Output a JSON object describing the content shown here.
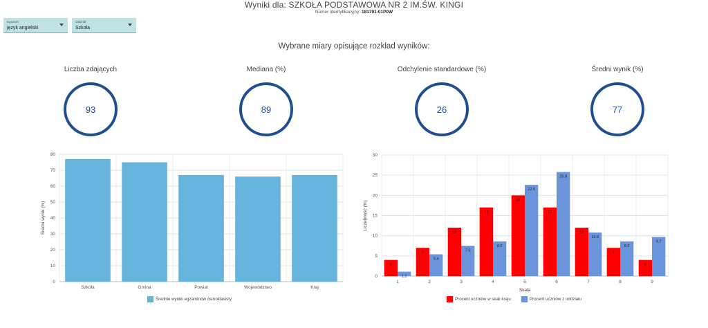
{
  "header": {
    "title": "Wyniki dla: SZKOŁA PODSTAWOWA NR 2 IM.ŚW. KINGI",
    "id_label": "Numer identyfikacyjny:",
    "id_value": "181701-01P0W"
  },
  "filters": {
    "exam": {
      "label": "Egzamin",
      "value": "język angielski"
    },
    "unit": {
      "label": "Oddział",
      "value": "Szkoła"
    }
  },
  "section_title": "Wybrane miary opisujące rozkład wyników:",
  "metrics": [
    {
      "label": "Liczba zdających",
      "value": "93"
    },
    {
      "label": "Mediana (%)",
      "value": "89"
    },
    {
      "label": "Odchylenie standardowe (%)",
      "value": "26"
    },
    {
      "label": "Średni wynik (%)",
      "value": "77"
    }
  ],
  "colors": {
    "ring": "#1f4e91",
    "bar_left": "#66b3dc",
    "country": "#ff0000",
    "class": "#6a95dc"
  },
  "chart_data": [
    {
      "type": "bar",
      "categories": [
        "Szkoła",
        "Gmina",
        "Powiat",
        "Województwo",
        "Kraj"
      ],
      "series": [
        {
          "name": "Średnie wyniki egzaminów ósmoklasisty",
          "values": [
            77,
            75,
            67,
            66,
            67
          ]
        }
      ],
      "ylabel": "Średni wynik (%)",
      "ylim": [
        0,
        80
      ],
      "yticks": [
        0,
        10,
        20,
        30,
        40,
        50,
        60,
        70,
        80
      ],
      "grid": true,
      "legend": "bottom"
    },
    {
      "type": "bar",
      "categories": [
        "1",
        "2",
        "3",
        "4",
        "5",
        "6",
        "7",
        "8",
        "9"
      ],
      "series": [
        {
          "name": "Procent uczniów w skali kraju",
          "values": [
            4,
            7,
            12,
            17,
            20,
            17,
            12,
            7,
            4
          ],
          "labels": [
            "4",
            "7",
            "12",
            "17",
            "20",
            "17",
            "12",
            "7",
            "4"
          ]
        },
        {
          "name": "Procent uczniów z oddziału",
          "values": [
            1.1,
            5.4,
            7.5,
            8.6,
            22.6,
            25.8,
            10.8,
            8.6,
            9.7
          ],
          "labels": [
            "1.1",
            "5.4",
            "7.5",
            "8.6",
            "22.6",
            "25.8",
            "10.8",
            "8.6",
            "9.7"
          ]
        }
      ],
      "xlabel": "Skala",
      "ylabel": "Liczebność (%)",
      "ylim": [
        0,
        30
      ],
      "yticks": [
        0,
        5,
        10,
        15,
        20,
        25,
        30
      ],
      "grid": true,
      "legend": "bottom"
    }
  ]
}
